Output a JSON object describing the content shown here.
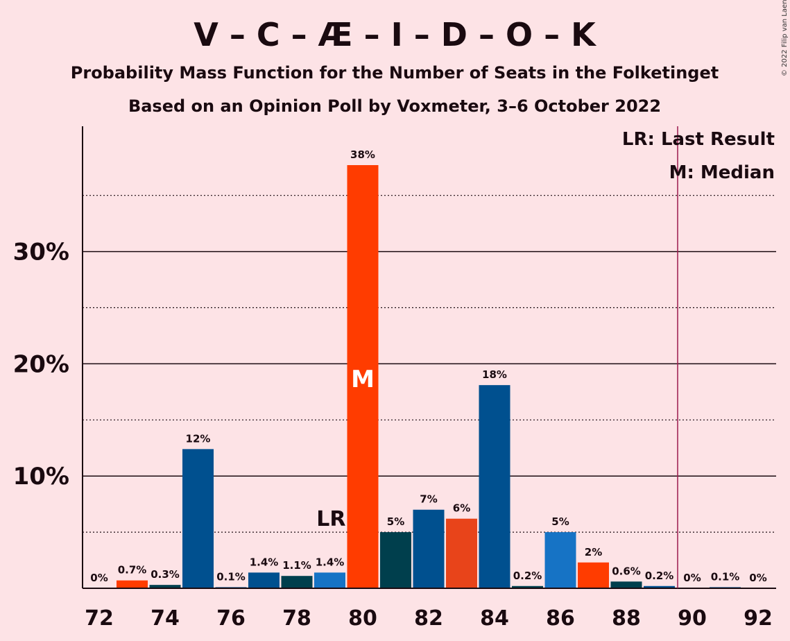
{
  "title": "V – C – Æ – I – D – O – K",
  "subtitle1": "Probability Mass Function for the Number of Seats in the Folketinget",
  "subtitle2": "Based on an Opinion Poll by Voxmeter, 3–6 October 2022",
  "copyright": "© 2022 Filip van Laenen",
  "legend": {
    "lr": "LR: Last Result",
    "m": "M: Median"
  },
  "markers": {
    "lr_label": "LR",
    "m_label": "M"
  },
  "colors": {
    "background": "#fde3e6",
    "dark_blue": "#00508f",
    "red_orange": "#ff3c00",
    "dark_teal": "#003f4d",
    "orange_red": "#e8441a",
    "light_blue": "#1673c5",
    "last_result_line": "#9b1b4e"
  },
  "chart_data": {
    "type": "bar",
    "xlabel": "",
    "ylabel": "",
    "x_ticks": [
      72,
      74,
      76,
      78,
      80,
      82,
      84,
      86,
      88,
      90,
      92
    ],
    "y_ticks": [
      "10%",
      "20%",
      "30%"
    ],
    "ylim": [
      0,
      40
    ],
    "grid": "solid at 10, 20, 30; dotted at 5, 15, 25, 35",
    "last_result": 80,
    "median": 80,
    "categories": [
      72,
      73,
      74,
      75,
      76,
      77,
      78,
      79,
      80,
      81,
      82,
      83,
      84,
      85,
      86,
      87,
      88,
      89,
      90,
      91,
      92
    ],
    "values": [
      0,
      0.7,
      0.3,
      12.4,
      0.1,
      1.4,
      1.1,
      1.4,
      37.7,
      5.0,
      7.0,
      6.2,
      18.1,
      0.2,
      5.0,
      2.3,
      0.6,
      0.2,
      0,
      0.1,
      0
    ],
    "labels": [
      "0%",
      "0.7%",
      "0.3%",
      "12%",
      "0.1%",
      "1.4%",
      "1.1%",
      "1.4%",
      "38%",
      "5%",
      "7%",
      "6%",
      "18%",
      "0.2%",
      "5%",
      "2%",
      "0.6%",
      "0.2%",
      "0%",
      "0.1%",
      "0%"
    ],
    "bar_colors": [
      "#00508f",
      "#ff3c00",
      "#003f4d",
      "#00508f",
      "#00508f",
      "#00508f",
      "#003f4d",
      "#1673c5",
      "#ff3c00",
      "#003f4d",
      "#00508f",
      "#e8441a",
      "#00508f",
      "#003f4d",
      "#1673c5",
      "#ff3c00",
      "#003f4d",
      "#00508f",
      "#00508f",
      "#00508f",
      "#00508f"
    ]
  }
}
